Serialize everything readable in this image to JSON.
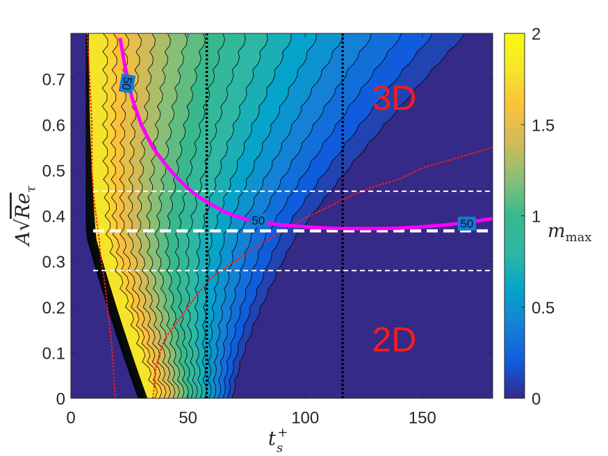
{
  "chart_data": {
    "type": "heatmap",
    "title": "",
    "xlabel": "t_s^+",
    "ylabel": "A√Re_τ",
    "xlim": [
      0,
      180
    ],
    "ylim": [
      0,
      0.8
    ],
    "x_ticks": [
      "0",
      "50",
      "100",
      "150"
    ],
    "y_ticks": [
      "0",
      "0.1",
      "0.2",
      "0.3",
      "0.4",
      "0.5",
      "0.6",
      "0.7"
    ],
    "colorbar": {
      "label": "m_max",
      "range": [
        0,
        2
      ],
      "ticks": [
        "0",
        "0.5",
        "1",
        "1.5",
        "2"
      ],
      "colormap": "parula"
    },
    "contour_levels": [
      0.1,
      0.2,
      0.3,
      0.4,
      0.5,
      0.6,
      0.7,
      0.8,
      0.9,
      1.0,
      1.1,
      1.2,
      1.3,
      1.4,
      1.5,
      1.6,
      1.7,
      1.8
    ],
    "region_labels": [
      {
        "text": "3D",
        "x": 138,
        "y": 0.66
      },
      {
        "text": "2D",
        "x": 138,
        "y": 0.13
      }
    ],
    "magenta_curve": {
      "label": "50",
      "color": "#ff00ff",
      "x": [
        21,
        23,
        26,
        30,
        35,
        40,
        45,
        50,
        55,
        60,
        65,
        70,
        75,
        80,
        90,
        100,
        110,
        120,
        130,
        140,
        150,
        160,
        170,
        180
      ],
      "y": [
        0.79,
        0.73,
        0.66,
        0.6,
        0.55,
        0.515,
        0.485,
        0.46,
        0.44,
        0.425,
        0.41,
        0.4,
        0.392,
        0.386,
        0.38,
        0.376,
        0.373,
        0.372,
        0.372,
        0.373,
        0.376,
        0.38,
        0.386,
        0.394
      ],
      "label_positions": [
        {
          "x": 24,
          "y": 0.69,
          "rotate": 100
        },
        {
          "x": 80,
          "y": 0.39,
          "rotate": 0
        },
        {
          "x": 169,
          "y": 0.383,
          "rotate": 0
        }
      ]
    },
    "red_boundary": {
      "color": "#ff1a1a",
      "x": [
        180,
        170,
        160,
        150,
        140,
        130,
        120,
        110,
        100,
        90,
        80,
        70,
        60,
        55,
        50,
        45,
        40,
        38,
        36,
        35.5,
        35
      ],
      "y": [
        0.55,
        0.535,
        0.52,
        0.505,
        0.48,
        0.465,
        0.445,
        0.42,
        0.395,
        0.365,
        0.335,
        0.3,
        0.265,
        0.235,
        0.2,
        0.165,
        0.13,
        0.1,
        0.06,
        0.02,
        0
      ]
    },
    "red_left_boundary": {
      "x": [
        7,
        8,
        9,
        9,
        10,
        11,
        12,
        13,
        14,
        15,
        16,
        17,
        18,
        18.5,
        19
      ],
      "y": [
        0.8,
        0.7,
        0.6,
        0.5,
        0.43,
        0.39,
        0.35,
        0.3,
        0.27,
        0.23,
        0.18,
        0.14,
        0.08,
        0.03,
        0
      ]
    },
    "white_dashed_lines": [
      {
        "y": 0.454,
        "weight": "thin"
      },
      {
        "y": 0.367,
        "weight": "thick"
      },
      {
        "y": 0.28,
        "weight": "thin"
      }
    ],
    "black_dotted_lines": [
      {
        "x": 58
      },
      {
        "x": 116
      }
    ]
  },
  "colors": {
    "background": "#352a87",
    "magenta": "#ff00ff",
    "red": "#ff1a1a",
    "white": "#ffffff",
    "black": "#000000"
  }
}
